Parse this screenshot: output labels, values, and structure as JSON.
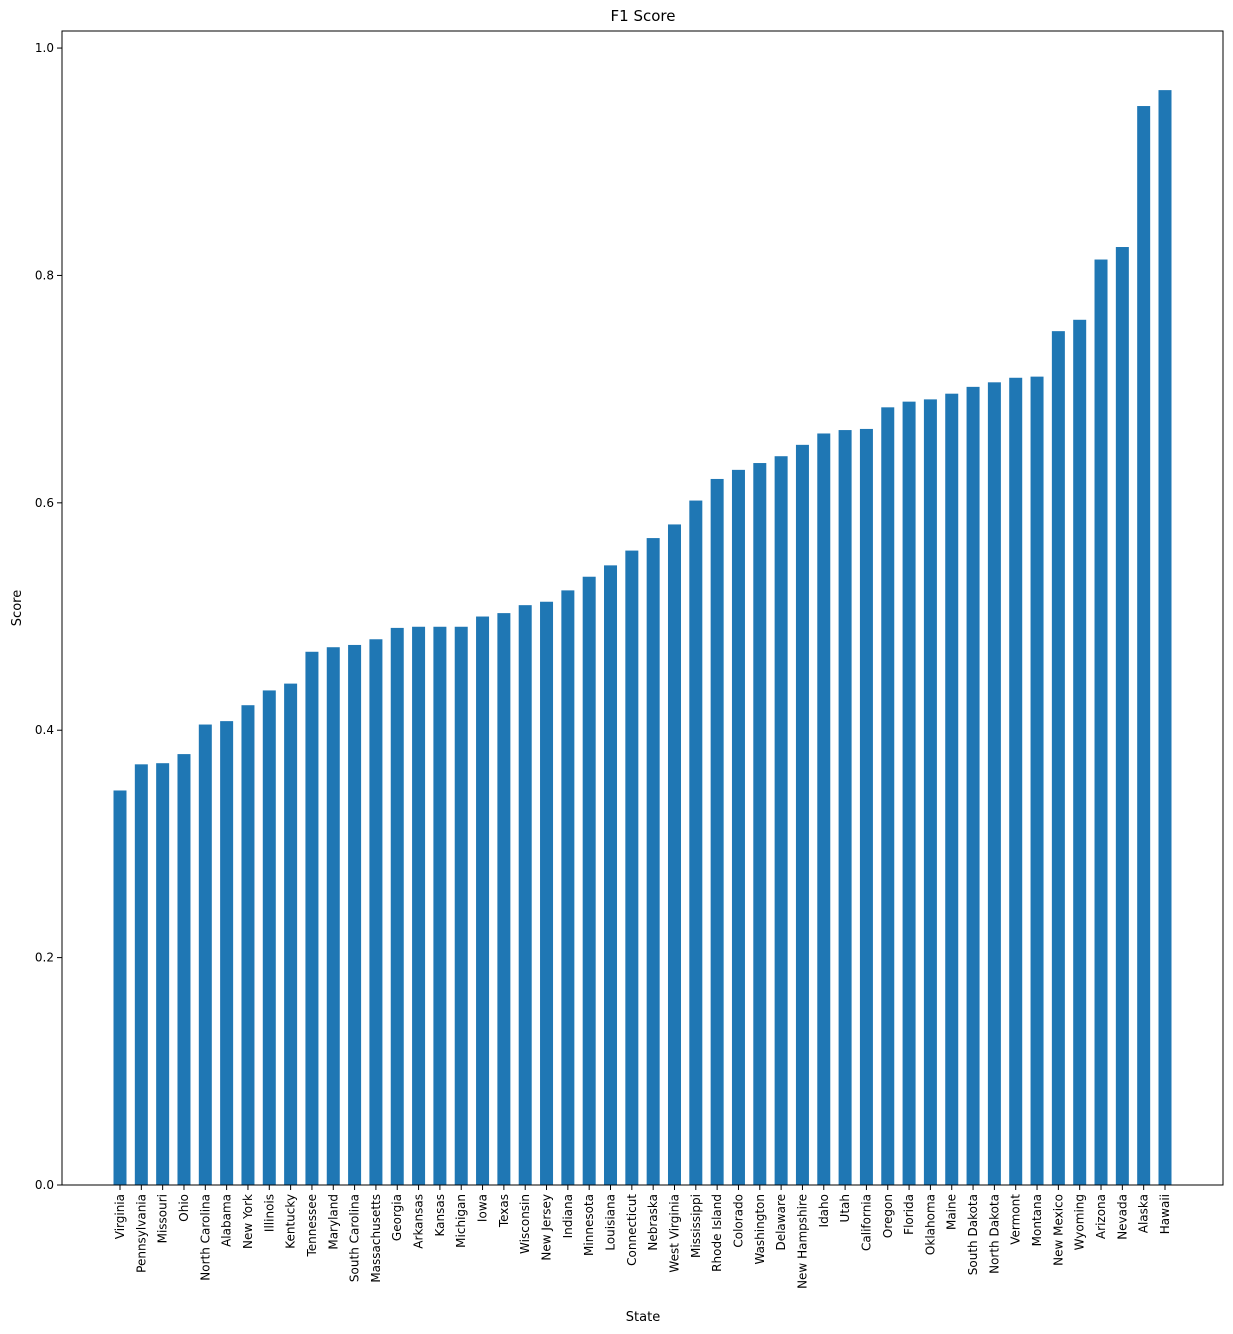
{
  "chart_data": {
    "type": "bar",
    "title": "F1 Score",
    "xlabel": "State",
    "ylabel": "Score",
    "ylim": [
      0,
      1.015
    ],
    "yticks": [
      "0.0",
      "0.2",
      "0.4",
      "0.6",
      "0.8",
      "1.0"
    ],
    "grid": false,
    "bar_color": "#1f77b4",
    "categories": [
      "Virginia",
      "Pennsylvania",
      "Missouri",
      "Ohio",
      "North Carolina",
      "Alabama",
      "New York",
      "Illinois",
      "Kentucky",
      "Tennessee",
      "Maryland",
      "South Carolina",
      "Massachusetts",
      "Georgia",
      "Arkansas",
      "Kansas",
      "Michigan",
      "Iowa",
      "Texas",
      "Wisconsin",
      "New Jersey",
      "Indiana",
      "Minnesota",
      "Louisiana",
      "Connecticut",
      "Nebraska",
      "West Virginia",
      "Mississippi",
      "Rhode Island",
      "Colorado",
      "Washington",
      "Delaware",
      "New Hampshire",
      "Idaho",
      "Utah",
      "California",
      "Oregon",
      "Florida",
      "Oklahoma",
      "Maine",
      "South Dakota",
      "North Dakota",
      "Vermont",
      "Montana",
      "New Mexico",
      "Wyoming",
      "Arizona",
      "Nevada",
      "Alaska",
      "Hawaii"
    ],
    "values": [
      0.347,
      0.37,
      0.371,
      0.379,
      0.405,
      0.408,
      0.422,
      0.435,
      0.441,
      0.469,
      0.473,
      0.475,
      0.48,
      0.49,
      0.491,
      0.491,
      0.491,
      0.5,
      0.503,
      0.51,
      0.513,
      0.523,
      0.535,
      0.545,
      0.558,
      0.569,
      0.581,
      0.602,
      0.621,
      0.629,
      0.635,
      0.641,
      0.651,
      0.661,
      0.664,
      0.665,
      0.684,
      0.689,
      0.691,
      0.696,
      0.702,
      0.706,
      0.71,
      0.711,
      0.751,
      0.761,
      0.814,
      0.825,
      0.949,
      0.963
    ]
  }
}
